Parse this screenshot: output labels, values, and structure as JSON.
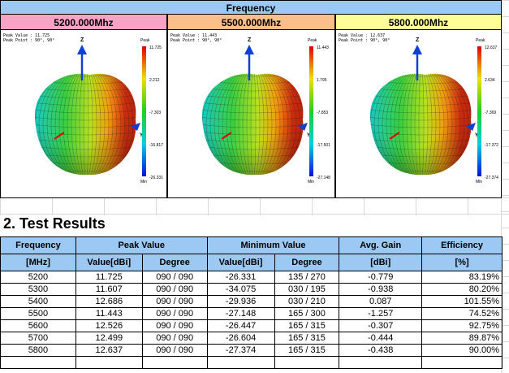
{
  "header": {
    "title": "Frequency"
  },
  "panels": [
    {
      "frequency": "5200.000Mhz",
      "peak_value": "Peak Value : 11.725",
      "peak_point": "Peak Point : 90°, 90°",
      "scale_top": "Peak",
      "scale": [
        "11.725",
        "2.212",
        "-7.303",
        "-16.817",
        "-26.331"
      ],
      "scale_bottom": "Min",
      "z_axis": "Z",
      "y_axis": "Y"
    },
    {
      "frequency": "5500.000Mhz",
      "peak_value": "Peak Value : 11.443",
      "peak_point": "Peak Point : 90°, 90°",
      "scale_top": "Peak",
      "scale": [
        "11.443",
        "1.795",
        "-7.853",
        "-17.501",
        "-27.148"
      ],
      "scale_bottom": "Min",
      "z_axis": "Z",
      "y_axis": "Y"
    },
    {
      "frequency": "5800.000Mhz",
      "peak_value": "Peak Value : 12.637",
      "peak_point": "Peak Point : 90°, 90°",
      "scale_top": "Peak",
      "scale": [
        "12.637",
        "2.634",
        "-7.369",
        "-17.372",
        "-27.374"
      ],
      "scale_bottom": "Min",
      "z_axis": "Z",
      "y_axis": "Y"
    }
  ],
  "section": {
    "title": "2. Test Results"
  },
  "table": {
    "group_headers": [
      "Frequency",
      "Peak Value",
      "Minimum Value",
      "Avg. Gain",
      "Efficiency"
    ],
    "sub_headers": [
      "[MHz]",
      "Value[dBi]",
      "Degree",
      "Value[dBi]",
      "Degree",
      "[dBi]",
      "[%]"
    ],
    "rows": [
      [
        "5200",
        "11.725",
        "090 / 090",
        "-26.331",
        "135 / 270",
        "-0.779",
        "83.19%"
      ],
      [
        "5300",
        "11.607",
        "090 / 090",
        "-34.075",
        "030 / 195",
        "-0.938",
        "80.20%"
      ],
      [
        "5400",
        "12.686",
        "090 / 090",
        "-29.936",
        "030 / 210",
        "0.087",
        "101.55%"
      ],
      [
        "5500",
        "11.443",
        "090 / 090",
        "-27.148",
        "165 / 300",
        "-1.257",
        "74.52%"
      ],
      [
        "5600",
        "12.526",
        "090 / 090",
        "-26.447",
        "165 / 315",
        "-0.307",
        "92.75%"
      ],
      [
        "5700",
        "12.499",
        "090 / 090",
        "-26.604",
        "165 / 315",
        "-0.444",
        "89.87%"
      ],
      [
        "5800",
        "12.637",
        "090 / 090",
        "-27.374",
        "165 / 315",
        "-0.438",
        "90.00%"
      ]
    ]
  }
}
